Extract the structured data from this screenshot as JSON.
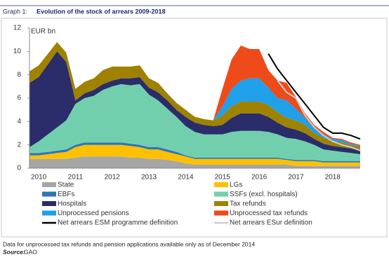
{
  "chart_data": {
    "type": "area",
    "graph_label": "Graph 1:",
    "title": "Evolution of the stock of arrears 2009-2018",
    "y_label": "EUR bn",
    "ylim": [
      0,
      12
    ],
    "yticks": [
      0,
      2,
      4,
      6,
      8,
      10,
      12
    ],
    "categories": [
      null,
      "2010",
      null,
      null,
      null,
      "2011",
      null,
      null,
      null,
      "2012",
      null,
      null,
      null,
      "2013",
      null,
      null,
      null,
      "2014",
      null,
      null,
      null,
      "2015",
      null,
      null,
      null,
      "2016",
      null,
      null,
      null,
      "2017",
      null,
      null,
      null,
      "2018",
      null,
      null,
      null
    ],
    "series": [
      {
        "name": "State",
        "color": "#a6a6a6",
        "style": "area",
        "values": [
          0.8,
          0.8,
          0.8,
          0.8,
          0.8,
          0.9,
          1.0,
          1.0,
          1.0,
          1.0,
          1.0,
          0.9,
          0.9,
          0.8,
          0.8,
          0.7,
          0.6,
          0.4,
          0.3,
          0.3,
          0.3,
          0.3,
          0.3,
          0.3,
          0.3,
          0.3,
          0.3,
          0.3,
          0.3,
          0.2,
          0.2,
          0.2,
          0.2,
          0.2,
          0.2,
          0.2,
          0.2
        ]
      },
      {
        "name": "LGs",
        "color": "#ffc000",
        "style": "area",
        "values": [
          0.3,
          0.3,
          0.4,
          0.5,
          0.6,
          0.9,
          1.0,
          1.0,
          1.0,
          1.0,
          1.0,
          1.0,
          0.9,
          0.8,
          0.8,
          0.7,
          0.6,
          0.6,
          0.5,
          0.5,
          0.5,
          0.5,
          0.5,
          0.5,
          0.5,
          0.5,
          0.5,
          0.5,
          0.4,
          0.4,
          0.4,
          0.4,
          0.3,
          0.3,
          0.3,
          0.3,
          0.3
        ]
      },
      {
        "name": "EBFs",
        "color": "#2e75b6",
        "style": "area",
        "values": [
          0.2,
          0.2,
          0.2,
          0.2,
          0.2,
          0.2,
          0.2,
          0.2,
          0.2,
          0.2,
          0.2,
          0.2,
          0.2,
          0.2,
          0.2,
          0.2,
          0.2,
          0.1,
          0.1,
          0.1,
          0.1,
          0.1,
          0.1,
          0.1,
          0.1,
          0.1,
          0.1,
          0.1,
          0.1,
          0.1,
          0.1,
          0.1,
          0.1,
          0.1,
          0.1,
          0.1,
          0.1
        ]
      },
      {
        "name": "SSFs (excl. hospitals)",
        "color": "#72cfae",
        "style": "area",
        "values": [
          0.5,
          1.0,
          1.5,
          2.0,
          2.5,
          3.5,
          3.8,
          4.0,
          4.5,
          4.8,
          5.0,
          5.0,
          5.2,
          4.5,
          4.0,
          3.5,
          3.0,
          2.5,
          2.2,
          2.0,
          2.0,
          2.0,
          2.2,
          2.3,
          2.3,
          2.3,
          2.2,
          2.0,
          1.8,
          1.8,
          1.6,
          1.3,
          1.0,
          0.9,
          0.8,
          0.7,
          0.6
        ]
      },
      {
        "name": "Hospitals",
        "color": "#2b2d6a",
        "style": "area",
        "values": [
          5.5,
          5.5,
          6.0,
          6.5,
          5.0,
          0.3,
          0.4,
          0.5,
          0.5,
          0.5,
          0.5,
          0.6,
          0.6,
          0.6,
          0.7,
          0.7,
          0.6,
          0.8,
          0.8,
          0.8,
          0.7,
          0.8,
          1.2,
          1.5,
          1.5,
          1.5,
          1.3,
          1.0,
          0.9,
          0.8,
          0.7,
          0.5,
          0.5,
          0.4,
          0.4,
          0.4,
          0.3
        ]
      },
      {
        "name": "Tax refunds",
        "color": "#9e8200",
        "style": "area",
        "values": [
          1.0,
          1.0,
          0.9,
          0.8,
          0.8,
          1.0,
          1.0,
          1.0,
          1.2,
          1.2,
          1.0,
          1.0,
          1.0,
          0.8,
          0.8,
          0.6,
          0.6,
          0.6,
          0.5,
          0.5,
          0.5,
          0.8,
          1.0,
          1.0,
          1.0,
          1.0,
          1.0,
          0.9,
          0.8,
          0.8,
          0.7,
          0.5,
          0.5,
          0.4,
          0.4,
          0.3,
          0.3
        ]
      },
      {
        "name": "Unprocessed pensions",
        "color": "#1fa0e8",
        "style": "area",
        "values": [
          0,
          0,
          0,
          0,
          0,
          0,
          0,
          0,
          0,
          0,
          0,
          0,
          0,
          0,
          0,
          0,
          0,
          0,
          0,
          0,
          0,
          0.8,
          1.5,
          1.8,
          2.0,
          2.0,
          1.5,
          1.2,
          1.5,
          1.0,
          0.6,
          0.4,
          0.3,
          0.2,
          0.2,
          0.1,
          0.1
        ]
      },
      {
        "name": "Unprocessed tax refunds",
        "color": "#ef4a1a",
        "style": "area",
        "values": [
          0,
          0,
          0,
          0,
          0,
          0,
          0,
          0,
          0,
          0,
          0,
          0,
          0,
          0,
          0,
          0,
          0,
          0,
          0,
          0,
          0,
          1.5,
          2.5,
          3.0,
          2.5,
          2.5,
          1.5,
          1.5,
          1.5,
          1.0,
          0.4,
          0.3,
          0.2,
          0.1,
          0.1,
          0.1,
          0.1
        ]
      },
      {
        "name": "Net arrears ESM programme definition",
        "color": "#000000",
        "style": "line",
        "values": [
          null,
          null,
          null,
          null,
          null,
          null,
          null,
          null,
          null,
          null,
          null,
          null,
          null,
          null,
          null,
          null,
          null,
          null,
          null,
          null,
          null,
          null,
          null,
          null,
          null,
          null,
          9.8,
          8.5,
          7.5,
          6.5,
          5.5,
          4.5,
          3.5,
          3.0,
          3.0,
          2.8,
          2.5
        ]
      },
      {
        "name": "Net arrears ESur definition",
        "color": "#cfcfcf",
        "style": "line",
        "values": [
          null,
          null,
          null,
          null,
          null,
          null,
          null,
          null,
          null,
          null,
          null,
          null,
          null,
          null,
          null,
          null,
          null,
          null,
          null,
          null,
          null,
          null,
          null,
          null,
          null,
          null,
          null,
          7.5,
          6.5,
          6.0,
          4.5,
          3.5,
          2.8,
          2.3,
          2.0,
          1.8,
          1.5
        ]
      }
    ],
    "note": "Data for unprocessed tax refunds and pension applications available only as of December 2014",
    "source_label": "Source:",
    "source": "GAO"
  }
}
